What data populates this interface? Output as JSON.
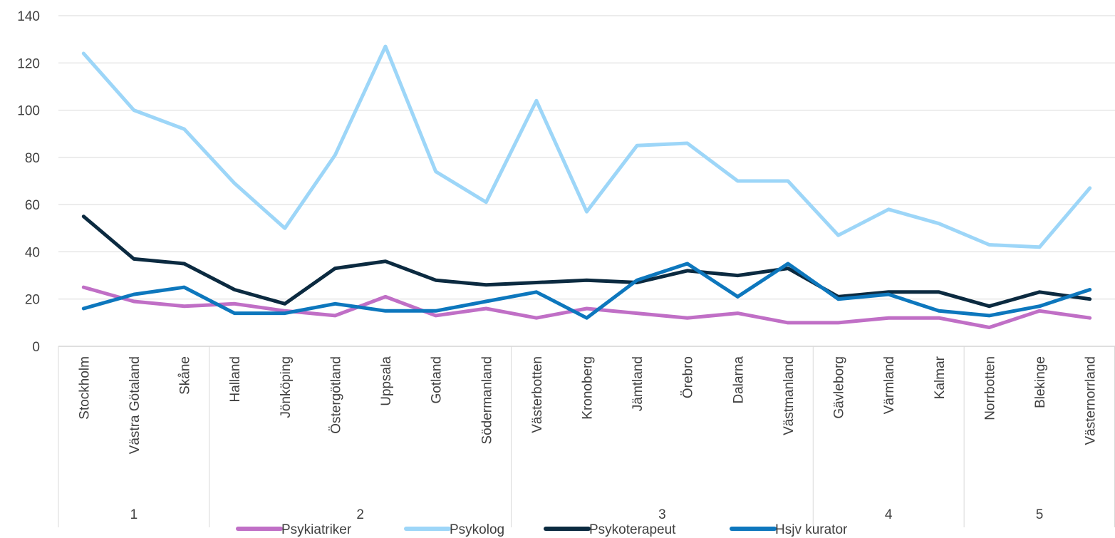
{
  "chart_data": {
    "type": "line",
    "categories": [
      "Stockholm",
      "Västra Götaland",
      "Skåne",
      "Halland",
      "Jönköping",
      "Östergötland",
      "Uppsala",
      "Gotland",
      "Södermanland",
      "Västerbotten",
      "Kronoberg",
      "Jämtland",
      "Örebro",
      "Dalarna",
      "Västmanland",
      "Gävleborg",
      "Värmland",
      "Kalmar",
      "Norrbotten",
      "Blekinge",
      "Västernorrland"
    ],
    "groups": [
      {
        "label": "1",
        "count": 3
      },
      {
        "label": "2",
        "count": 6
      },
      {
        "label": "3",
        "count": 6
      },
      {
        "label": "4",
        "count": 3
      },
      {
        "label": "5",
        "count": 3
      }
    ],
    "ylim": [
      0,
      140
    ],
    "yticks": [
      0,
      20,
      40,
      60,
      80,
      100,
      120,
      140
    ],
    "grid": true,
    "legend_position": "bottom",
    "series": [
      {
        "name": "Psykiatriker",
        "color": "#c06fc6",
        "values": [
          25,
          19,
          17,
          18,
          15,
          13,
          21,
          13,
          16,
          12,
          16,
          14,
          12,
          14,
          10,
          10,
          12,
          12,
          8,
          15,
          12
        ]
      },
      {
        "name": "Psykolog",
        "color": "#9dd6f8",
        "values": [
          124,
          100,
          92,
          69,
          50,
          81,
          127,
          74,
          61,
          104,
          57,
          85,
          86,
          70,
          70,
          47,
          58,
          52,
          43,
          42,
          67
        ]
      },
      {
        "name": "Psykoterapeut",
        "color": "#0b2a40",
        "values": [
          55,
          37,
          35,
          24,
          18,
          33,
          36,
          28,
          26,
          27,
          28,
          27,
          32,
          30,
          33,
          21,
          23,
          23,
          17,
          23,
          20
        ]
      },
      {
        "name": "Hsjv kurator",
        "color": "#0d77bd",
        "values": [
          16,
          22,
          25,
          14,
          14,
          18,
          15,
          15,
          19,
          23,
          12,
          28,
          35,
          21,
          35,
          20,
          22,
          15,
          13,
          17,
          24
        ]
      }
    ]
  }
}
